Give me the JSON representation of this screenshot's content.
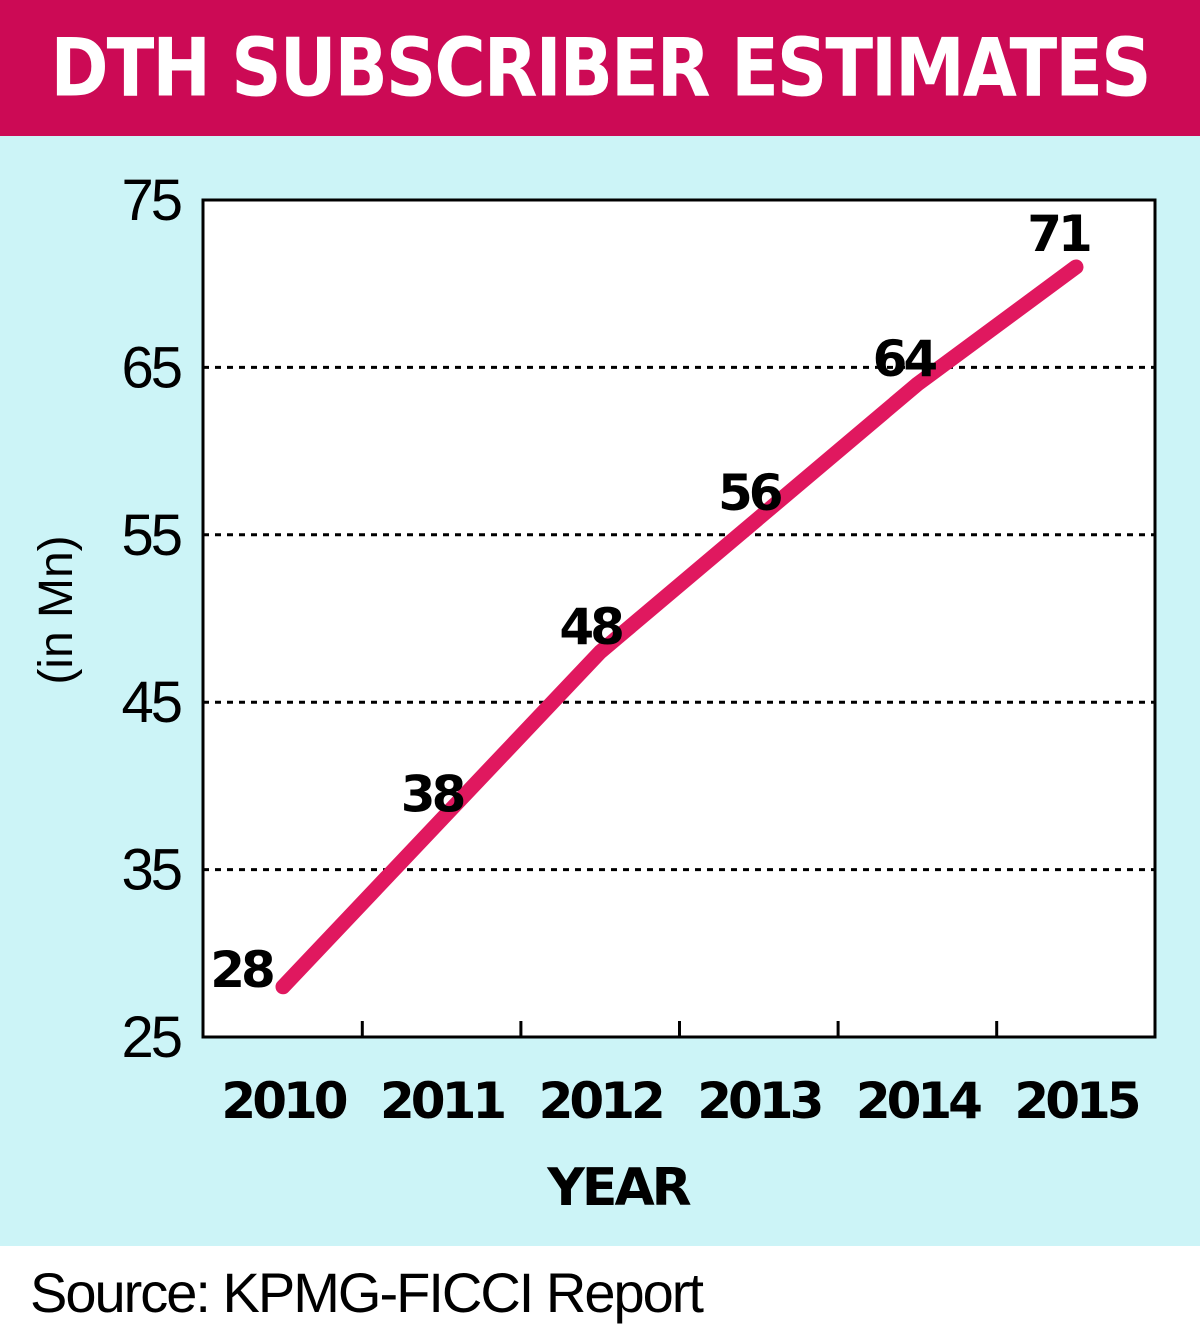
{
  "chart_data": {
    "type": "line",
    "title": "DTH SUBSCRIBER ESTIMATES",
    "categories": [
      "2010",
      "2011",
      "2012",
      "2013",
      "2014",
      "2015"
    ],
    "series": [
      {
        "values": [
          28,
          38,
          48,
          56,
          64,
          71
        ]
      }
    ],
    "xlabel": "YEAR",
    "ylabel": "(in Mn)",
    "ylim": [
      25,
      75
    ],
    "yticks": [
      25,
      35,
      45,
      55,
      65,
      75
    ],
    "grid": "horizontal dashed",
    "line_color": "#e0185f"
  },
  "source": "Source: KPMG-FICCI Report",
  "colors": {
    "header": "#cc0a55",
    "panel": "#ccf4f7",
    "line": "#e0185f"
  }
}
